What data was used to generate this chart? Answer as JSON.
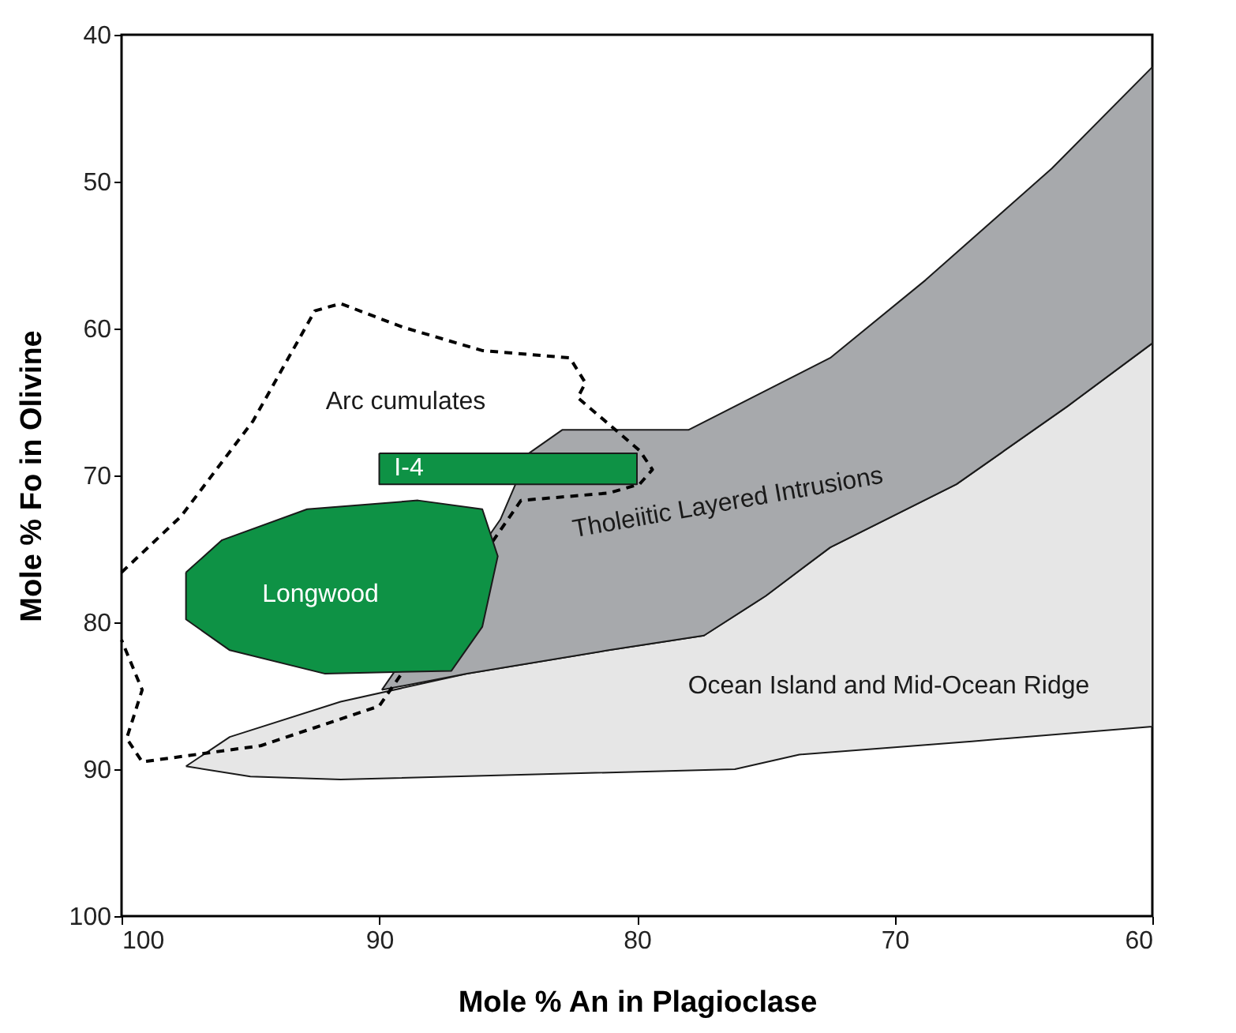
{
  "chart_data": {
    "type": "area",
    "xlabel": "Mole % An in Plagioclase",
    "ylabel": "Mole % Fo in Olivine",
    "xlim": [
      100,
      60
    ],
    "xticks": [
      100,
      90,
      80,
      70,
      60
    ],
    "ylim": [
      100,
      40
    ],
    "yticks": [
      100,
      90,
      80,
      70,
      60,
      50,
      40
    ],
    "grid": false,
    "series": [
      {
        "name": "Ocean Island and Mid-Ocean Ridge",
        "color": "#e6e6e6",
        "x": [
          97.5,
          95,
          91.5,
          76.2,
          73.7,
          67,
          60,
          60,
          63.3,
          67.6,
          72.5,
          75,
          77.4,
          81.1,
          86.6,
          91.5,
          95.8
        ],
        "values": [
          89.8,
          90.5,
          90.7,
          90,
          89,
          88.1,
          87.1,
          61,
          65.3,
          70.6,
          74.9,
          78.2,
          80.9,
          81.9,
          83.5,
          85.4,
          87.8
        ]
      },
      {
        "name": "Tholeiitic Layered Intrusions",
        "color": "#a7a9ac",
        "x": [
          89.9,
          86.6,
          81.1,
          77.4,
          75,
          72.5,
          67.6,
          63.3,
          60,
          60,
          63.9,
          68.8,
          72.5,
          78,
          82.9,
          84.2,
          85.3
        ],
        "values": [
          84.6,
          83.5,
          81.9,
          80.9,
          78.2,
          74.9,
          70.6,
          65.3,
          61,
          42.2,
          49.1,
          56.7,
          62,
          66.9,
          66.9,
          68.5,
          73
        ]
      },
      {
        "name": "Arc cumulates",
        "type": "line",
        "line_style": "dashed",
        "color": "#000000",
        "x": [
          100,
          97.7,
          94.9,
          92.5,
          91.5,
          89.1,
          86,
          82.6,
          82,
          82.3,
          79.9,
          79.4,
          79.9,
          81.1,
          84.5,
          90,
          94.6,
          99.2,
          99.8,
          99.2,
          100
        ],
        "values": [
          76.6,
          72.8,
          66.3,
          58.8,
          58.3,
          59.9,
          61.5,
          62,
          63.7,
          64.7,
          68.3,
          69.6,
          70.6,
          71.2,
          71.7,
          85.7,
          88.4,
          89.5,
          87.9,
          84.6,
          81.2
        ]
      },
      {
        "name": "Longwood",
        "color": "#0e9245",
        "x": [
          97.5,
          96.1,
          92.8,
          88.5,
          86,
          85.4,
          86,
          87.2,
          92.1,
          95.8,
          97.5
        ],
        "values": [
          76.6,
          74.4,
          72.3,
          71.7,
          72.3,
          75.5,
          80.3,
          83.3,
          83.5,
          81.9,
          79.8
        ]
      },
      {
        "name": "I-4",
        "color": "#0e9245",
        "x": [
          90,
          80,
          80,
          90
        ],
        "values": [
          68.5,
          68.5,
          70.6,
          70.6
        ]
      }
    ]
  }
}
